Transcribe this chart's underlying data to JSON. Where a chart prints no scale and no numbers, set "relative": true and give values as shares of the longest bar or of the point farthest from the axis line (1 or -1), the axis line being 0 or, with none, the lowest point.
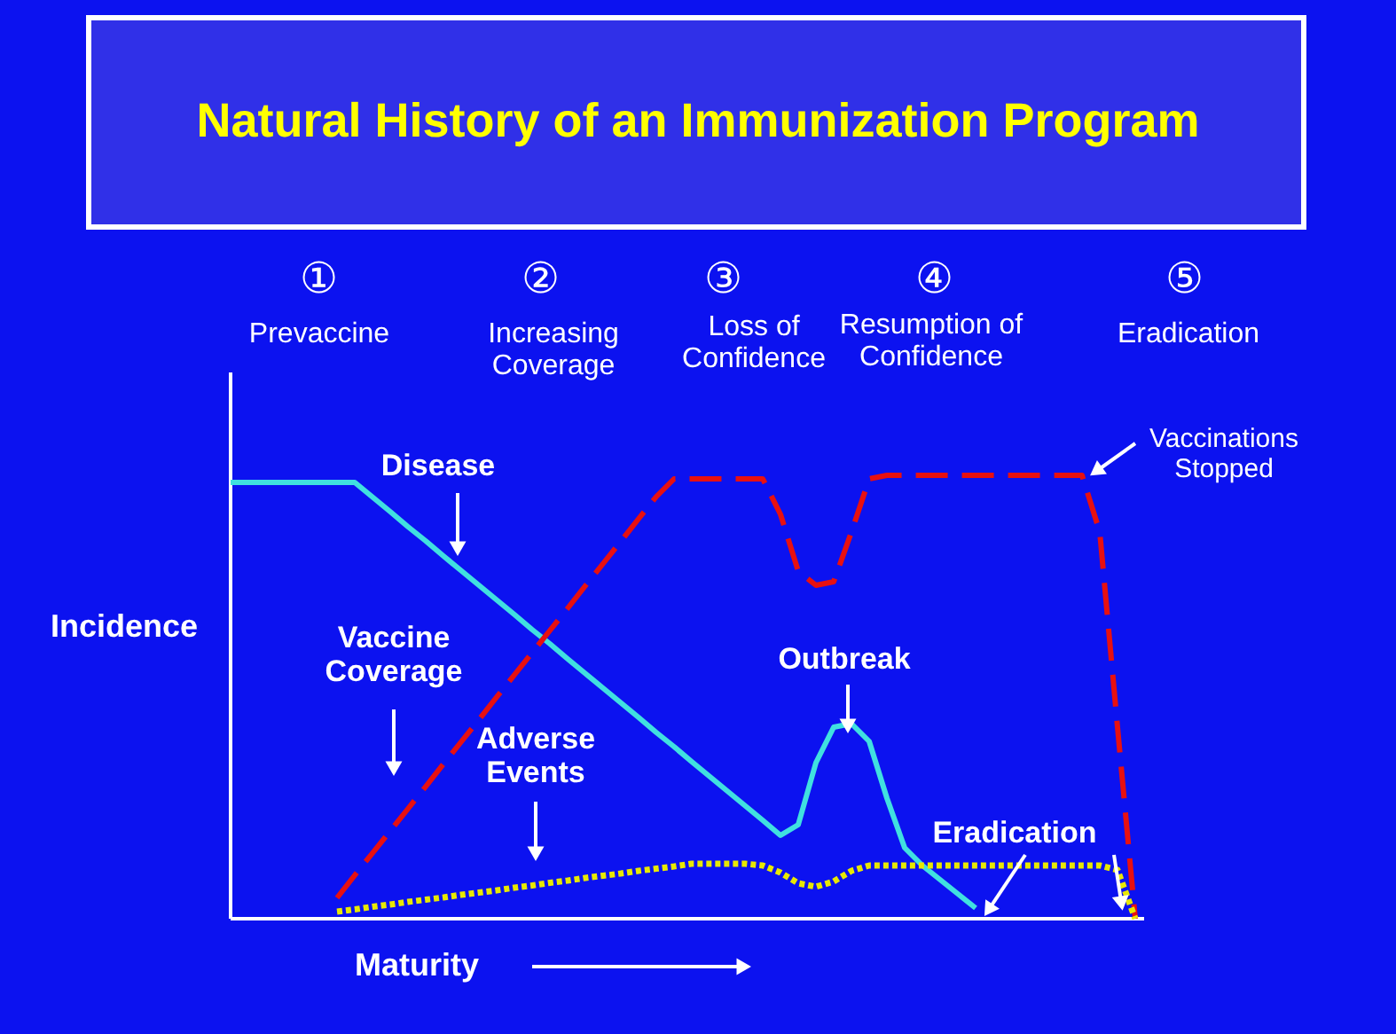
{
  "chart_data": {
    "type": "line",
    "title": "Natural History of an Immunization Program",
    "xlabel": "Maturity",
    "ylabel": "Incidence",
    "relative": true,
    "categories": [
      null,
      null,
      null,
      null,
      null,
      null,
      null,
      null,
      null,
      null,
      null,
      null,
      null,
      null,
      null,
      null,
      null,
      null,
      null,
      null,
      null,
      null,
      null,
      null,
      null,
      null,
      null,
      null,
      null,
      null,
      null,
      null,
      null,
      null,
      null,
      null,
      null,
      null,
      null,
      null,
      null,
      null,
      null,
      null,
      null,
      null,
      null,
      null,
      null,
      null,
      null,
      null
    ],
    "series": [
      {
        "name": "Disease",
        "color": "#40e0e0",
        "line_style": "solid",
        "values": [
          0.984,
          0.984,
          0.984,
          0.984,
          0.984,
          0.984,
          0.984,
          0.984,
          0.951,
          0.918,
          0.884,
          0.852,
          0.818,
          0.785,
          0.752,
          0.719,
          0.686,
          0.652,
          0.62,
          0.586,
          0.553,
          0.52,
          0.487,
          0.454,
          0.42,
          0.388,
          0.354,
          0.321,
          0.288,
          0.255,
          0.222,
          0.188,
          0.212,
          0.352,
          0.432,
          0.44,
          0.4,
          0.272,
          0.16,
          0.12,
          0.088,
          0.056,
          0.024,
          null,
          null,
          null,
          null,
          null,
          null,
          null,
          null,
          null
        ]
      },
      {
        "name": "Vaccine\nCoverage",
        "color": "#e81010",
        "line_style": "dashed",
        "values": [
          null,
          null,
          null,
          null,
          null,
          null,
          0.047,
          0.098,
          0.148,
          0.198,
          0.248,
          0.298,
          0.349,
          0.399,
          0.449,
          0.5,
          0.55,
          0.6,
          0.65,
          0.7,
          0.751,
          0.801,
          0.851,
          0.902,
          0.952,
          0.992,
          0.992,
          0.992,
          0.992,
          0.992,
          0.992,
          0.912,
          0.784,
          0.752,
          0.76,
          0.872,
          0.992,
          1.0,
          1.0,
          1.0,
          1.0,
          1.0,
          1.0,
          1.0,
          1.0,
          1.0,
          1.0,
          1.0,
          1.0,
          0.872,
          0.432,
          0.0
        ]
      },
      {
        "name": "Adverse\nEvents",
        "color": "#e8e800",
        "line_style": "dotted",
        "values": [
          null,
          null,
          null,
          null,
          null,
          null,
          0.016,
          0.021,
          0.027,
          0.032,
          0.038,
          0.043,
          0.048,
          0.054,
          0.059,
          0.064,
          0.07,
          0.075,
          0.081,
          0.086,
          0.092,
          0.097,
          0.102,
          0.108,
          0.113,
          0.118,
          0.124,
          0.124,
          0.124,
          0.124,
          0.12,
          0.104,
          0.08,
          0.072,
          0.084,
          0.108,
          0.12,
          0.12,
          0.12,
          0.12,
          0.12,
          0.12,
          0.12,
          0.12,
          0.12,
          0.12,
          0.12,
          0.12,
          0.12,
          0.12,
          0.11,
          0.0
        ]
      }
    ],
    "annotations": [
      "①",
      "Prevaccine",
      "②",
      "Increasing\nCoverage",
      "③",
      "Loss of\nConfidence",
      "④",
      "Resumption of\nConfidence",
      "⑤",
      "Eradication",
      "Vaccinations\nStopped",
      "Outbreak",
      "Eradication"
    ]
  }
}
